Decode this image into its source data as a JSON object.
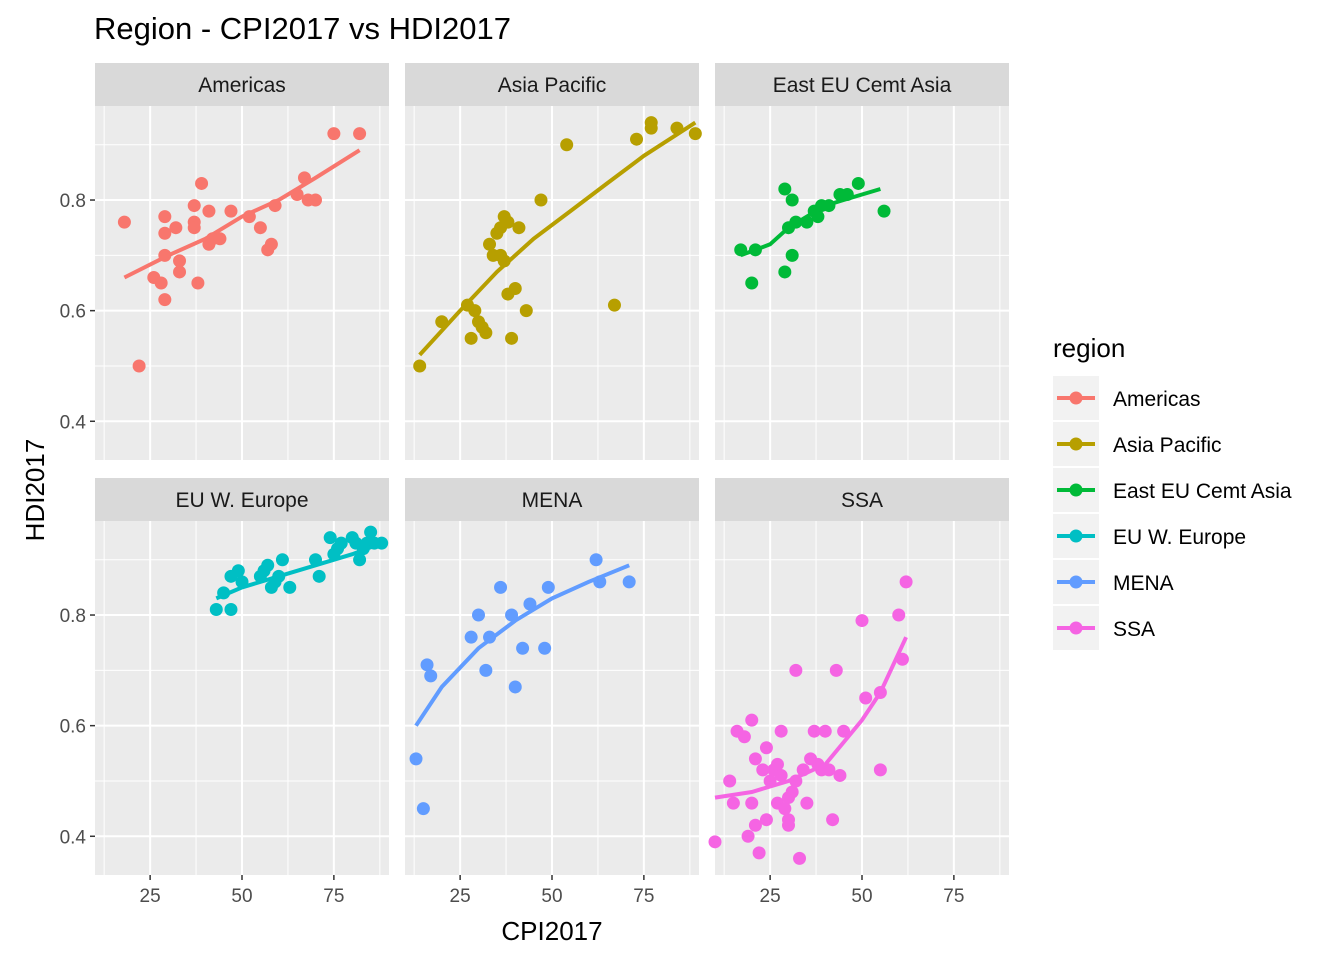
{
  "chart_data": {
    "type": "scatter",
    "title": "Region - CPI2017 vs HDI2017",
    "xlabel": "CPI2017",
    "ylabel": "HDI2017",
    "xlim": [
      10,
      90
    ],
    "ylim": [
      0.33,
      0.97
    ],
    "x_ticks": [
      "25",
      "50",
      "75"
    ],
    "y_ticks": [
      "0.4",
      "0.6",
      "0.8"
    ],
    "grid": true,
    "legend": {
      "title": "region",
      "placement": "right"
    },
    "series": [
      {
        "name": "Americas",
        "color": "#F8766D",
        "points": [
          [
            18,
            0.76
          ],
          [
            22,
            0.5
          ],
          [
            26,
            0.66
          ],
          [
            28,
            0.65
          ],
          [
            29,
            0.77
          ],
          [
            29,
            0.74
          ],
          [
            29,
            0.7
          ],
          [
            29,
            0.62
          ],
          [
            32,
            0.75
          ],
          [
            33,
            0.69
          ],
          [
            33,
            0.67
          ],
          [
            37,
            0.79
          ],
          [
            37,
            0.76
          ],
          [
            37,
            0.75
          ],
          [
            38,
            0.65
          ],
          [
            39,
            0.83
          ],
          [
            41,
            0.78
          ],
          [
            41,
            0.72
          ],
          [
            42,
            0.73
          ],
          [
            44,
            0.73
          ],
          [
            47,
            0.78
          ],
          [
            52,
            0.77
          ],
          [
            55,
            0.75
          ],
          [
            57,
            0.71
          ],
          [
            58,
            0.72
          ],
          [
            59,
            0.79
          ],
          [
            65,
            0.81
          ],
          [
            67,
            0.84
          ],
          [
            68,
            0.8
          ],
          [
            70,
            0.8
          ],
          [
            75,
            0.92
          ],
          [
            82,
            0.92
          ]
        ],
        "trend": [
          [
            18,
            0.66
          ],
          [
            30,
            0.7
          ],
          [
            40,
            0.73
          ],
          [
            50,
            0.77
          ],
          [
            60,
            0.8
          ],
          [
            70,
            0.84
          ],
          [
            82,
            0.89
          ]
        ]
      },
      {
        "name": "Asia Pacific",
        "color": "#B79F00",
        "points": [
          [
            14,
            0.5
          ],
          [
            20,
            0.58
          ],
          [
            27,
            0.61
          ],
          [
            28,
            0.55
          ],
          [
            29,
            0.6
          ],
          [
            30,
            0.58
          ],
          [
            31,
            0.57
          ],
          [
            32,
            0.56
          ],
          [
            33,
            0.72
          ],
          [
            34,
            0.7
          ],
          [
            35,
            0.74
          ],
          [
            36,
            0.75
          ],
          [
            36,
            0.7
          ],
          [
            37,
            0.69
          ],
          [
            37,
            0.77
          ],
          [
            38,
            0.76
          ],
          [
            38,
            0.63
          ],
          [
            39,
            0.55
          ],
          [
            40,
            0.64
          ],
          [
            41,
            0.75
          ],
          [
            43,
            0.6
          ],
          [
            47,
            0.8
          ],
          [
            54,
            0.9
          ],
          [
            67,
            0.61
          ],
          [
            73,
            0.91
          ],
          [
            77,
            0.93
          ],
          [
            77,
            0.94
          ],
          [
            84,
            0.93
          ],
          [
            89,
            0.92
          ]
        ],
        "trend": [
          [
            14,
            0.52
          ],
          [
            25,
            0.6
          ],
          [
            35,
            0.67
          ],
          [
            45,
            0.73
          ],
          [
            55,
            0.78
          ],
          [
            65,
            0.83
          ],
          [
            75,
            0.88
          ],
          [
            89,
            0.94
          ]
        ]
      },
      {
        "name": "East EU Cemt Asia",
        "color": "#00BA38",
        "points": [
          [
            17,
            0.71
          ],
          [
            20,
            0.65
          ],
          [
            21,
            0.71
          ],
          [
            29,
            0.82
          ],
          [
            29,
            0.67
          ],
          [
            30,
            0.75
          ],
          [
            31,
            0.8
          ],
          [
            31,
            0.7
          ],
          [
            32,
            0.76
          ],
          [
            35,
            0.76
          ],
          [
            37,
            0.78
          ],
          [
            38,
            0.77
          ],
          [
            39,
            0.79
          ],
          [
            41,
            0.79
          ],
          [
            44,
            0.81
          ],
          [
            46,
            0.81
          ],
          [
            49,
            0.83
          ],
          [
            56,
            0.78
          ]
        ],
        "trend": [
          [
            17,
            0.7
          ],
          [
            25,
            0.72
          ],
          [
            30,
            0.75
          ],
          [
            35,
            0.77
          ],
          [
            40,
            0.79
          ],
          [
            45,
            0.8
          ],
          [
            50,
            0.81
          ],
          [
            55,
            0.82
          ]
        ]
      },
      {
        "name": "EU W. Europe",
        "color": "#00BFC4",
        "points": [
          [
            43,
            0.81
          ],
          [
            45,
            0.84
          ],
          [
            47,
            0.81
          ],
          [
            47,
            0.87
          ],
          [
            49,
            0.88
          ],
          [
            50,
            0.86
          ],
          [
            55,
            0.87
          ],
          [
            56,
            0.88
          ],
          [
            57,
            0.89
          ],
          [
            58,
            0.85
          ],
          [
            59,
            0.86
          ],
          [
            60,
            0.87
          ],
          [
            61,
            0.9
          ],
          [
            63,
            0.85
          ],
          [
            70,
            0.9
          ],
          [
            71,
            0.87
          ],
          [
            74,
            0.94
          ],
          [
            75,
            0.91
          ],
          [
            76,
            0.92
          ],
          [
            77,
            0.93
          ],
          [
            80,
            0.94
          ],
          [
            81,
            0.93
          ],
          [
            82,
            0.9
          ],
          [
            83,
            0.92
          ],
          [
            84,
            0.93
          ],
          [
            85,
            0.95
          ],
          [
            86,
            0.93
          ],
          [
            88,
            0.93
          ]
        ],
        "trend": [
          [
            43,
            0.83
          ],
          [
            50,
            0.85
          ],
          [
            60,
            0.87
          ],
          [
            70,
            0.89
          ],
          [
            80,
            0.91
          ],
          [
            88,
            0.93
          ]
        ]
      },
      {
        "name": "MENA",
        "color": "#619CFF",
        "points": [
          [
            13,
            0.54
          ],
          [
            15,
            0.45
          ],
          [
            16,
            0.71
          ],
          [
            17,
            0.69
          ],
          [
            28,
            0.76
          ],
          [
            30,
            0.8
          ],
          [
            32,
            0.7
          ],
          [
            33,
            0.76
          ],
          [
            36,
            0.85
          ],
          [
            39,
            0.8
          ],
          [
            40,
            0.67
          ],
          [
            42,
            0.74
          ],
          [
            44,
            0.82
          ],
          [
            48,
            0.74
          ],
          [
            49,
            0.85
          ],
          [
            62,
            0.9
          ],
          [
            63,
            0.86
          ],
          [
            71,
            0.86
          ]
        ],
        "trend": [
          [
            13,
            0.6
          ],
          [
            20,
            0.67
          ],
          [
            30,
            0.74
          ],
          [
            40,
            0.79
          ],
          [
            50,
            0.83
          ],
          [
            60,
            0.86
          ],
          [
            71,
            0.89
          ]
        ]
      },
      {
        "name": "SSA",
        "color": "#F564E3",
        "points": [
          [
            10,
            0.39
          ],
          [
            14,
            0.5
          ],
          [
            15,
            0.46
          ],
          [
            16,
            0.59
          ],
          [
            18,
            0.58
          ],
          [
            19,
            0.4
          ],
          [
            20,
            0.61
          ],
          [
            20,
            0.46
          ],
          [
            21,
            0.42
          ],
          [
            21,
            0.54
          ],
          [
            22,
            0.37
          ],
          [
            23,
            0.52
          ],
          [
            24,
            0.56
          ],
          [
            24,
            0.43
          ],
          [
            25,
            0.5
          ],
          [
            26,
            0.52
          ],
          [
            27,
            0.46
          ],
          [
            27,
            0.53
          ],
          [
            28,
            0.59
          ],
          [
            28,
            0.51
          ],
          [
            29,
            0.45
          ],
          [
            30,
            0.42
          ],
          [
            30,
            0.43
          ],
          [
            30,
            0.47
          ],
          [
            31,
            0.48
          ],
          [
            32,
            0.7
          ],
          [
            32,
            0.5
          ],
          [
            33,
            0.36
          ],
          [
            34,
            0.52
          ],
          [
            35,
            0.46
          ],
          [
            36,
            0.54
          ],
          [
            37,
            0.59
          ],
          [
            38,
            0.53
          ],
          [
            39,
            0.52
          ],
          [
            40,
            0.59
          ],
          [
            41,
            0.52
          ],
          [
            42,
            0.43
          ],
          [
            43,
            0.7
          ],
          [
            44,
            0.51
          ],
          [
            45,
            0.59
          ],
          [
            50,
            0.79
          ],
          [
            51,
            0.65
          ],
          [
            55,
            0.66
          ],
          [
            55,
            0.52
          ],
          [
            60,
            0.8
          ],
          [
            61,
            0.72
          ],
          [
            62,
            0.86
          ]
        ],
        "trend": [
          [
            10,
            0.47
          ],
          [
            20,
            0.48
          ],
          [
            30,
            0.5
          ],
          [
            40,
            0.53
          ],
          [
            50,
            0.61
          ],
          [
            55,
            0.66
          ],
          [
            62,
            0.76
          ]
        ]
      }
    ]
  }
}
